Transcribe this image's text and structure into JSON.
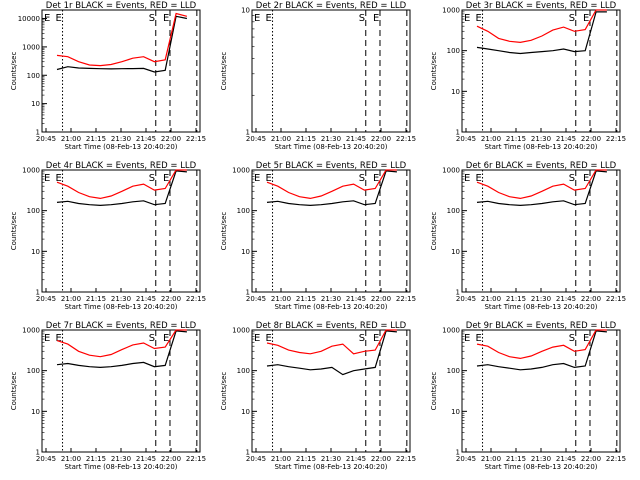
{
  "chart_data": [
    {
      "type": "line",
      "title": "Det 1r  BLACK = Events, RED = LLD",
      "xlabel": "Start Time (08-Feb-13 20:40:20)",
      "ylabel": "Counts/sec",
      "ylim": [
        1,
        20000
      ],
      "yscale": "log",
      "yticks": [
        "1",
        "10",
        "100",
        "1000",
        "10000"
      ],
      "xticks": [
        "20:45",
        "21:00",
        "21:15",
        "21:30",
        "21:45",
        "22:00",
        "22:15"
      ],
      "markers": [
        {
          "label": "E",
          "style": "dotted"
        },
        {
          "label": "S",
          "style": "dashed"
        },
        {
          "label": "E",
          "style": "dashed"
        },
        {
          "label": "",
          "style": "dashed"
        }
      ],
      "series": [
        {
          "color": "#000000",
          "values": [
            160,
            200,
            180,
            175,
            170,
            168,
            170,
            172,
            175,
            130,
            150,
            12000,
            10000
          ]
        },
        {
          "color": "#ff0000",
          "values": [
            500,
            450,
            300,
            230,
            220,
            240,
            300,
            400,
            450,
            300,
            350,
            15000,
            12000
          ]
        }
      ]
    },
    {
      "type": "line",
      "title": "Det 2r  BLACK = Events, RED = LLD",
      "xlabel": "Start Time (08-Feb-13 20:40:20)",
      "ylabel": "Counts/sec",
      "ylim": [
        1,
        10
      ],
      "yscale": "log",
      "yticks": [
        "1",
        "10"
      ],
      "xticks": [
        "20:45",
        "21:00",
        "21:15",
        "21:30",
        "21:45",
        "22:00",
        "22:15"
      ],
      "markers": [
        {
          "label": "E",
          "style": "dotted"
        },
        {
          "label": "S",
          "style": "dashed"
        },
        {
          "label": "E",
          "style": "dashed"
        },
        {
          "label": "",
          "style": "dashed"
        }
      ],
      "series": []
    },
    {
      "type": "line",
      "title": "Det 3r  BLACK = Events, RED = LLD",
      "xlabel": "Start Time (08-Feb-13 20:40:20)",
      "ylabel": "Counts/sec",
      "ylim": [
        1,
        1000
      ],
      "yscale": "log",
      "yticks": [
        "1",
        "10",
        "100",
        "1000"
      ],
      "xticks": [
        "20:45",
        "21:00",
        "21:15",
        "21:30",
        "21:45",
        "22:00",
        "22:15"
      ],
      "markers": [
        {
          "label": "E",
          "style": "dotted"
        },
        {
          "label": "S",
          "style": "dashed"
        },
        {
          "label": "E",
          "style": "dashed"
        },
        {
          "label": "",
          "style": "dashed"
        }
      ],
      "series": [
        {
          "color": "#000000",
          "values": [
            120,
            110,
            100,
            90,
            85,
            90,
            95,
            100,
            110,
            95,
            100,
            900,
            900
          ]
        },
        {
          "color": "#ff0000",
          "values": [
            400,
            300,
            200,
            170,
            160,
            180,
            230,
            320,
            380,
            300,
            330,
            1000,
            1000
          ]
        }
      ]
    },
    {
      "type": "line",
      "title": "Det 4r  BLACK = Events, RED = LLD",
      "xlabel": "Start Time (08-Feb-13 20:40:20)",
      "ylabel": "Counts/sec",
      "ylim": [
        1,
        1000
      ],
      "yscale": "log",
      "yticks": [
        "1",
        "10",
        "100",
        "1000"
      ],
      "xticks": [
        "20:45",
        "21:00",
        "21:15",
        "21:30",
        "21:45",
        "22:00",
        "22:15"
      ],
      "markers": [
        {
          "label": "E",
          "style": "dotted"
        },
        {
          "label": "S",
          "style": "dashed"
        },
        {
          "label": "E",
          "style": "dashed"
        },
        {
          "label": "",
          "style": "dashed"
        }
      ],
      "series": [
        {
          "color": "#000000",
          "values": [
            160,
            170,
            150,
            140,
            135,
            140,
            150,
            165,
            175,
            140,
            150,
            950,
            900
          ]
        },
        {
          "color": "#ff0000",
          "values": [
            500,
            400,
            280,
            220,
            200,
            230,
            300,
            400,
            450,
            320,
            350,
            1000,
            1000
          ]
        }
      ]
    },
    {
      "type": "line",
      "title": "Det 5r  BLACK = Events, RED = LLD",
      "xlabel": "Start Time (08-Feb-13 20:40:20)",
      "ylabel": "Counts/sec",
      "ylim": [
        1,
        1000
      ],
      "yscale": "log",
      "yticks": [
        "1",
        "10",
        "100",
        "1000"
      ],
      "xticks": [
        "20:45",
        "21:00",
        "21:15",
        "21:30",
        "21:45",
        "22:00",
        "22:15"
      ],
      "markers": [
        {
          "label": "E",
          "style": "dotted"
        },
        {
          "label": "S",
          "style": "dashed"
        },
        {
          "label": "E",
          "style": "dashed"
        },
        {
          "label": "",
          "style": "dashed"
        }
      ],
      "series": [
        {
          "color": "#000000",
          "values": [
            160,
            170,
            150,
            140,
            135,
            140,
            150,
            165,
            175,
            140,
            150,
            950,
            900
          ]
        },
        {
          "color": "#ff0000",
          "values": [
            500,
            400,
            280,
            220,
            200,
            230,
            300,
            400,
            450,
            320,
            350,
            1000,
            1000
          ]
        }
      ]
    },
    {
      "type": "line",
      "title": "Det 6r  BLACK = Events, RED = LLD",
      "xlabel": "Start Time (08-Feb-13 20:40:20)",
      "ylabel": "Counts/sec",
      "ylim": [
        1,
        1000
      ],
      "yscale": "log",
      "yticks": [
        "1",
        "10",
        "100",
        "1000"
      ],
      "xticks": [
        "20:45",
        "21:00",
        "21:15",
        "21:30",
        "21:45",
        "22:00",
        "22:15"
      ],
      "markers": [
        {
          "label": "E",
          "style": "dotted"
        },
        {
          "label": "S",
          "style": "dashed"
        },
        {
          "label": "E",
          "style": "dashed"
        },
        {
          "label": "",
          "style": "dashed"
        }
      ],
      "series": [
        {
          "color": "#000000",
          "values": [
            160,
            170,
            150,
            140,
            135,
            140,
            150,
            165,
            175,
            140,
            150,
            950,
            900
          ]
        },
        {
          "color": "#ff0000",
          "values": [
            500,
            400,
            280,
            220,
            200,
            230,
            300,
            400,
            450,
            320,
            350,
            1000,
            1000
          ]
        }
      ]
    },
    {
      "type": "line",
      "title": "Det 7r  BLACK = Events, RED = LLD",
      "xlabel": "Start Time (08-Feb-13 20:40:20)",
      "ylabel": "Counts/sec",
      "ylim": [
        1,
        1000
      ],
      "yscale": "log",
      "yticks": [
        "1",
        "10",
        "100",
        "1000"
      ],
      "xticks": [
        "20:45",
        "21:00",
        "21:15",
        "21:30",
        "21:45",
        "22:00",
        "22:15"
      ],
      "markers": [
        {
          "label": "E",
          "style": "dotted"
        },
        {
          "label": "S",
          "style": "dashed"
        },
        {
          "label": "E",
          "style": "dashed"
        },
        {
          "label": "",
          "style": "dashed"
        }
      ],
      "series": [
        {
          "color": "#000000",
          "values": [
            140,
            150,
            135,
            125,
            120,
            125,
            135,
            150,
            160,
            125,
            135,
            950,
            900
          ]
        },
        {
          "color": "#ff0000",
          "values": [
            550,
            450,
            300,
            240,
            220,
            250,
            330,
            430,
            480,
            350,
            380,
            1000,
            1000
          ]
        }
      ]
    },
    {
      "type": "line",
      "title": "Det 8r  BLACK = Events, RED = LLD",
      "xlabel": "Start Time (08-Feb-13 20:40:20)",
      "ylabel": "Counts/sec",
      "ylim": [
        1,
        1000
      ],
      "yscale": "log",
      "yticks": [
        "1",
        "10",
        "100",
        "1000"
      ],
      "xticks": [
        "20:45",
        "21:00",
        "21:15",
        "21:30",
        "21:45",
        "22:00",
        "22:15"
      ],
      "markers": [
        {
          "label": "E",
          "style": "dotted"
        },
        {
          "label": "S",
          "style": "dashed"
        },
        {
          "label": "E",
          "style": "dashed"
        },
        {
          "label": "",
          "style": "dashed"
        }
      ],
      "series": [
        {
          "color": "#000000",
          "values": [
            130,
            140,
            125,
            115,
            105,
            110,
            120,
            80,
            100,
            110,
            120,
            950,
            900
          ]
        },
        {
          "color": "#ff0000",
          "values": [
            480,
            420,
            320,
            280,
            260,
            300,
            400,
            450,
            260,
            300,
            320,
            1000,
            1000
          ]
        }
      ]
    },
    {
      "type": "line",
      "title": "Det 9r  BLACK = Events, RED = LLD",
      "xlabel": "Start Time (08-Feb-13 20:40:20)",
      "ylabel": "Counts/sec",
      "ylim": [
        1,
        1000
      ],
      "yscale": "log",
      "yticks": [
        "1",
        "10",
        "100",
        "1000"
      ],
      "xticks": [
        "20:45",
        "21:00",
        "21:15",
        "21:30",
        "21:45",
        "22:00",
        "22:15"
      ],
      "markers": [
        {
          "label": "E",
          "style": "dotted"
        },
        {
          "label": "S",
          "style": "dashed"
        },
        {
          "label": "E",
          "style": "dashed"
        },
        {
          "label": "",
          "style": "dashed"
        }
      ],
      "series": [
        {
          "color": "#000000",
          "values": [
            130,
            140,
            125,
            115,
            105,
            110,
            120,
            140,
            150,
            120,
            130,
            950,
            900
          ]
        },
        {
          "color": "#ff0000",
          "values": [
            450,
            400,
            280,
            220,
            200,
            230,
            300,
            380,
            420,
            300,
            330,
            1000,
            1000
          ]
        }
      ]
    }
  ]
}
